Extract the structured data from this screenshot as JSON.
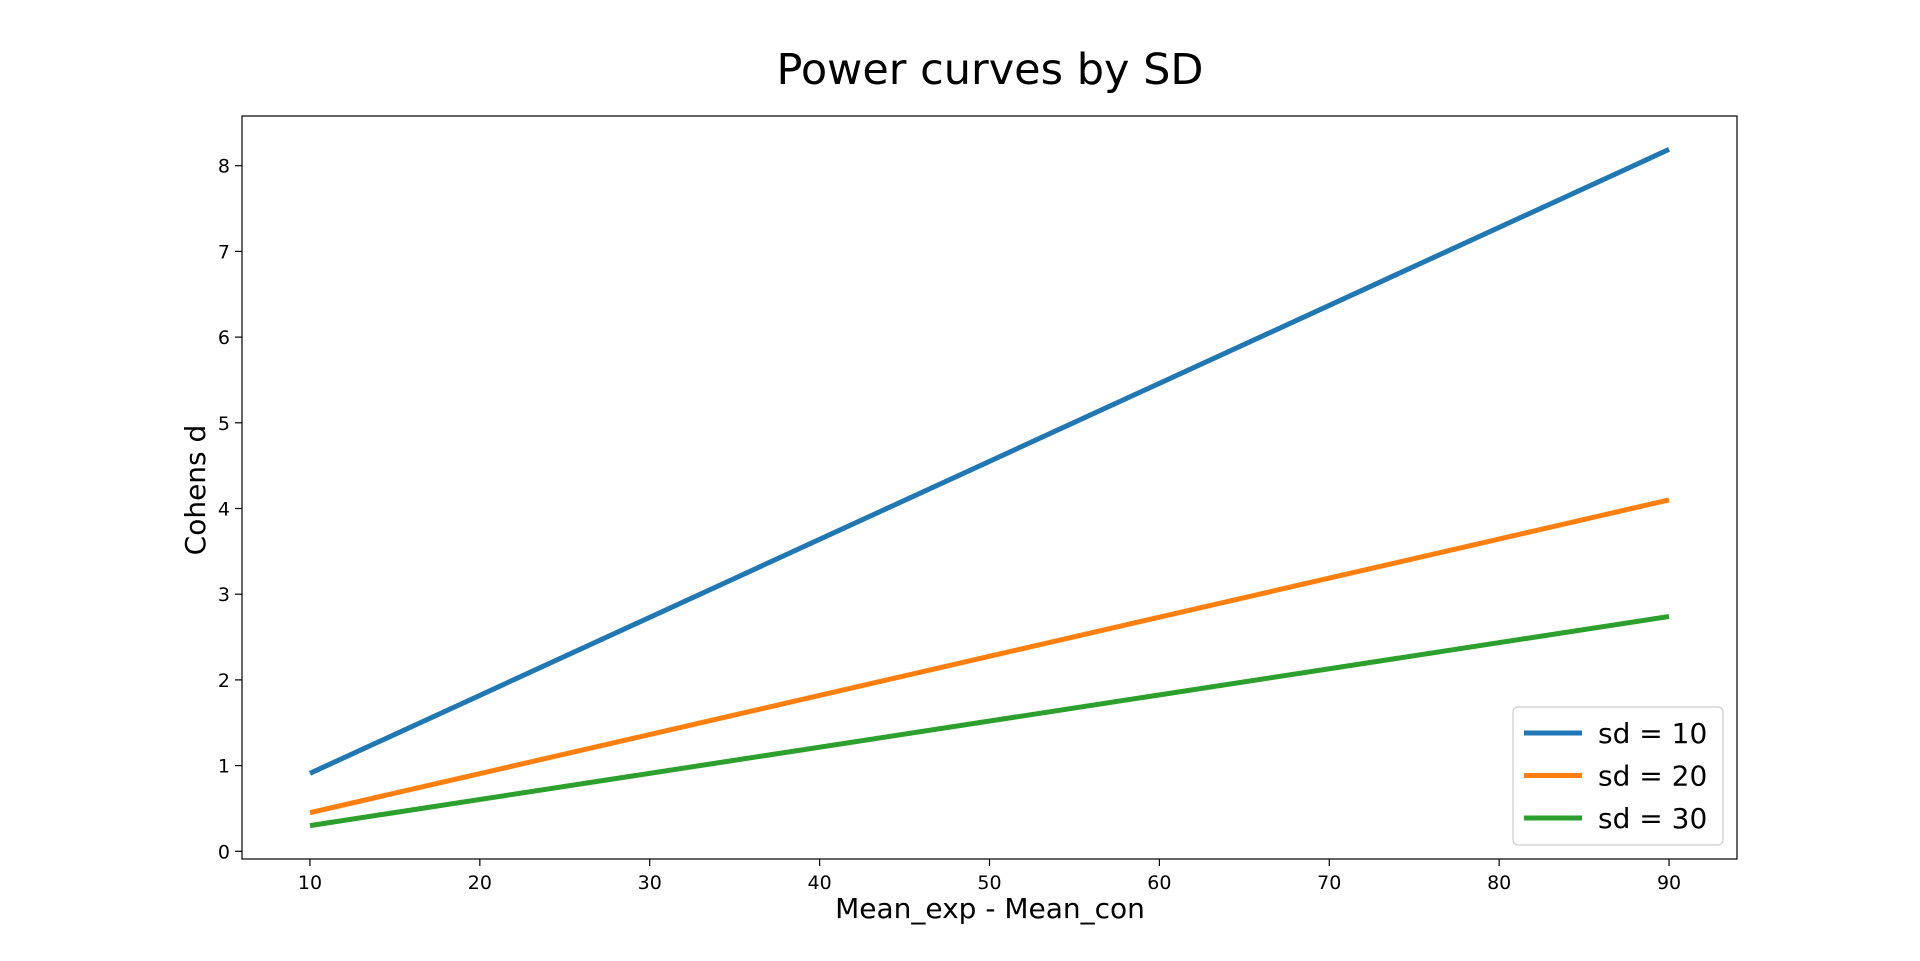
{
  "chart_data": {
    "type": "line",
    "title": "Power curves by SD",
    "xlabel": "Mean_exp - Mean_con",
    "ylabel": "Cohens d",
    "xlim": [
      6,
      94
    ],
    "ylim": [
      -0.09,
      8.58
    ],
    "xticks": [
      10,
      20,
      30,
      40,
      50,
      60,
      70,
      80,
      90
    ],
    "yticks": [
      0,
      1,
      2,
      3,
      4,
      5,
      6,
      7,
      8
    ],
    "grid": false,
    "legend_position": "lower right",
    "x": [
      10,
      90
    ],
    "series": [
      {
        "name": "sd = 10",
        "color": "#1f77b4",
        "values": [
          0.91,
          8.19
        ]
      },
      {
        "name": "sd = 20",
        "color": "#ff7f0e",
        "values": [
          0.45,
          4.1
        ]
      },
      {
        "name": "sd = 30",
        "color": "#2ca02c",
        "values": [
          0.3,
          2.74
        ]
      }
    ]
  }
}
